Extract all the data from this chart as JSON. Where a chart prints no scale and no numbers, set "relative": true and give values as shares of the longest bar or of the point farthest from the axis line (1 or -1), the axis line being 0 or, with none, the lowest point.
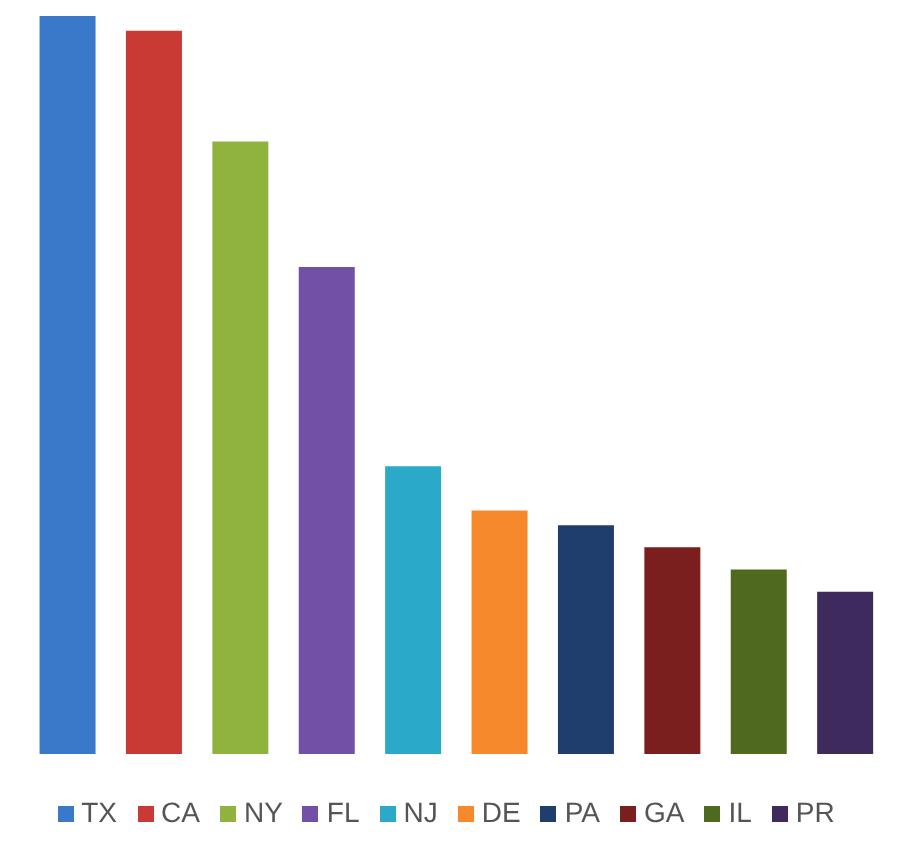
{
  "chart_data": {
    "type": "bar",
    "relative": true,
    "tick_labels": false,
    "legend": "bottom",
    "stacked": true,
    "categories": [
      null,
      null,
      null,
      null,
      null,
      null,
      null,
      null,
      null,
      null
    ],
    "series": [
      {
        "name": "TX",
        "color": "#3a78c9",
        "values": [
          1,
          null,
          null,
          null,
          null,
          null,
          null,
          null,
          null,
          null
        ]
      },
      {
        "name": "CA",
        "color": "#c93a35",
        "values": [
          null,
          0.98,
          null,
          null,
          null,
          null,
          null,
          null,
          null,
          null
        ]
      },
      {
        "name": "NY",
        "color": "#8fb33e",
        "values": [
          null,
          null,
          0.83,
          null,
          null,
          null,
          null,
          null,
          null,
          null
        ]
      },
      {
        "name": "FL",
        "color": "#7250a6",
        "values": [
          null,
          null,
          null,
          0.66,
          null,
          null,
          null,
          null,
          null,
          null
        ]
      },
      {
        "name": "NJ",
        "color": "#2aa9c9",
        "values": [
          null,
          null,
          null,
          null,
          0.39,
          null,
          null,
          null,
          null,
          null
        ]
      },
      {
        "name": "DE",
        "color": "#f5892b",
        "values": [
          null,
          null,
          null,
          null,
          null,
          0.33,
          null,
          null,
          null,
          null
        ]
      },
      {
        "name": "PA",
        "color": "#1f3e6e",
        "values": [
          null,
          null,
          null,
          null,
          null,
          null,
          0.31,
          null,
          null,
          null
        ]
      },
      {
        "name": "GA",
        "color": "#7a1f1d",
        "values": [
          null,
          null,
          null,
          null,
          null,
          null,
          null,
          0.28,
          null,
          null
        ]
      },
      {
        "name": "IL",
        "color": "#4f6a1f",
        "values": [
          null,
          null,
          null,
          null,
          null,
          null,
          null,
          null,
          0.25,
          null
        ]
      },
      {
        "name": "PR",
        "color": "#3f2a5e",
        "values": [
          null,
          null,
          null,
          null,
          null,
          null,
          null,
          null,
          null,
          0.22
        ]
      }
    ]
  }
}
